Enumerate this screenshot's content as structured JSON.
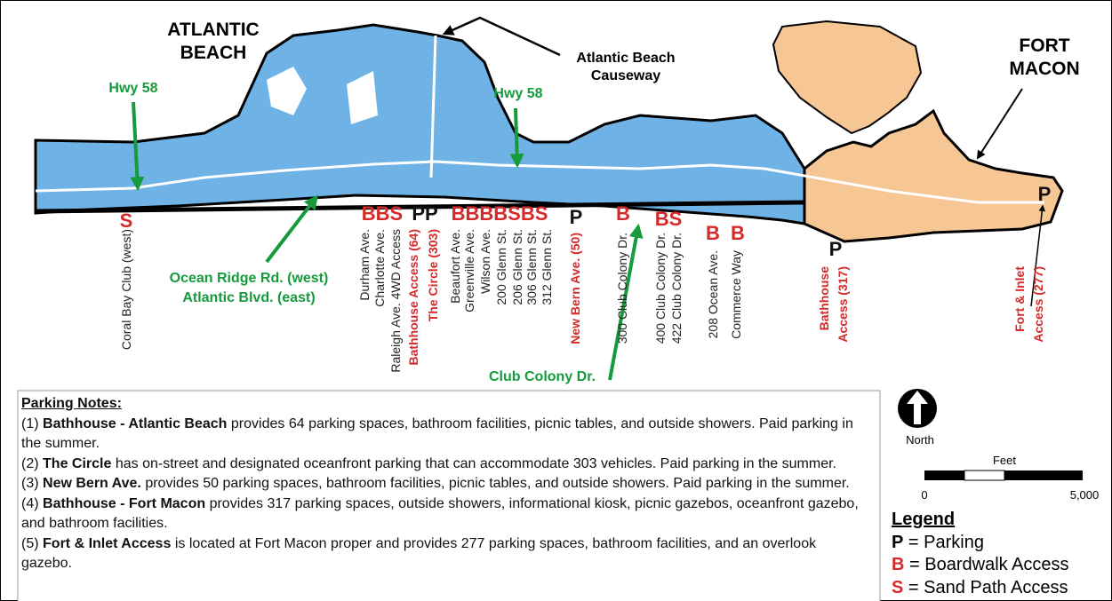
{
  "regions": [
    {
      "lines": [
        "ATLANTIC",
        "BEACH"
      ]
    },
    {
      "lines": [
        "FORT",
        "MACON"
      ]
    }
  ],
  "callout": {
    "lines": [
      "Atlantic Beach",
      "Causeway"
    ]
  },
  "roads": [
    {
      "lines": [
        "Hwy 58"
      ]
    },
    {
      "lines": [
        "Hwy 58"
      ]
    },
    {
      "lines": [
        "Ocean Ridge Rd. (west)",
        "Atlantic Blvd. (east)"
      ]
    },
    {
      "lines": [
        "Club Colony Dr."
      ]
    }
  ],
  "access_codes": [
    {
      "text": "S"
    },
    {
      "text": "BBS"
    },
    {
      "text": "PP"
    },
    {
      "text": "BBBBSBS"
    },
    {
      "text": "P"
    },
    {
      "text": "B"
    },
    {
      "text": "BS"
    },
    {
      "text": "B"
    },
    {
      "text": "B"
    },
    {
      "text": "P"
    },
    {
      "text": "P"
    }
  ],
  "streets": [
    {
      "lines": [
        "Coral Bay Club (west)"
      ],
      "highlight": false
    },
    {
      "lines": [
        "Durham Ave."
      ],
      "highlight": false
    },
    {
      "lines": [
        "Charlotte Ave."
      ],
      "highlight": false
    },
    {
      "lines": [
        "Raleigh Ave. 4WD Access"
      ],
      "highlight": false
    },
    {
      "lines": [
        "Bathhouse Access (64)"
      ],
      "highlight": true
    },
    {
      "lines": [
        "The Circle (303)"
      ],
      "highlight": true
    },
    {
      "lines": [
        "Beaufort Ave."
      ],
      "highlight": false
    },
    {
      "lines": [
        "Greenville Ave."
      ],
      "highlight": false
    },
    {
      "lines": [
        "Wilson Ave."
      ],
      "highlight": false
    },
    {
      "lines": [
        "200 Glenn St."
      ],
      "highlight": false
    },
    {
      "lines": [
        "206 Glenn St."
      ],
      "highlight": false
    },
    {
      "lines": [
        "306 Glenn St."
      ],
      "highlight": false
    },
    {
      "lines": [
        "312 Glenn St."
      ],
      "highlight": false
    },
    {
      "lines": [
        "New Bern Ave. (50)"
      ],
      "highlight": true
    },
    {
      "lines": [
        "300 Club Colony Dr."
      ],
      "highlight": false
    },
    {
      "lines": [
        "400 Club Colony Dr."
      ],
      "highlight": false
    },
    {
      "lines": [
        "422 Club Colony Dr."
      ],
      "highlight": false
    },
    {
      "lines": [
        "208 Ocean Ave."
      ],
      "highlight": false
    },
    {
      "lines": [
        "Commerce Way"
      ],
      "highlight": false
    },
    {
      "lines": [
        "Bathhouse",
        "Access (317)"
      ],
      "highlight": true
    },
    {
      "lines": [
        "Fort & Inlet",
        "Access (277)"
      ],
      "highlight": true
    }
  ],
  "notes": {
    "title": "Parking Notes:",
    "items": [
      {
        "number": "(1)",
        "bold": "Bathhouse - Atlantic Beach",
        "text": "provides 64 parking spaces, bathroom facilities, picnic tables, and outside showers.  Paid parking in the summer."
      },
      {
        "number": "(2)",
        "bold": "The Circle",
        "text": "has on-street and designated oceanfront parking that can accommodate 303 vehicles.  Paid parking in the summer."
      },
      {
        "number": "(3)",
        "bold": "New Bern Ave.",
        "text": "provides 50 parking spaces, bathroom facilities, picnic tables, and outside showers.  Paid parking in the summer."
      },
      {
        "number": "(4)",
        "bold": "Bathhouse - Fort Macon",
        "text": "provides 317 parking spaces, outside showers, informational kiosk, picnic gazebos, oceanfront gazebo, and bathroom facilities."
      },
      {
        "number": "(5)",
        "bold": "Fort & Inlet Access",
        "text": "is located at Fort Macon proper and provides 277 parking spaces, bathroom facilities, and an overlook gazebo."
      }
    ]
  },
  "north": "North",
  "scale": {
    "unit": "Feet",
    "ticks": [
      "0",
      "5,000"
    ]
  },
  "legend": {
    "title": "Legend",
    "items": [
      {
        "key": "P",
        "label": "= Parking"
      },
      {
        "key": "B",
        "label": "= Boardwalk Access"
      },
      {
        "key": "S",
        "label": "= Sand Path Access"
      }
    ]
  }
}
